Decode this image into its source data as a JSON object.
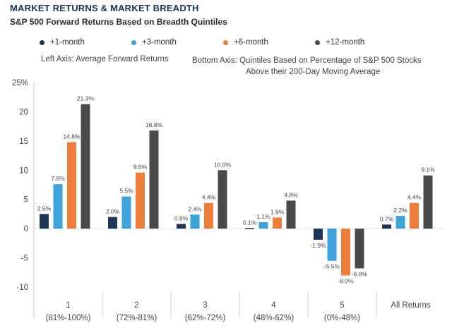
{
  "header": {
    "title": "MARKET RETURNS & MARKET BREADTH",
    "subtitle": "S&P 500 Forward Returns Based on Breadth Quintiles"
  },
  "notes": {
    "left_axis": "Left Axis: Average Forward Returns",
    "bottom_axis_line1": "Bottom Axis: Quintiles Based on Percentage of S&P 500 Stocks",
    "bottom_axis_line2": "Above their 200-Day Moving Average"
  },
  "colors": {
    "m1": "#1d3557",
    "m3": "#3ea3dc",
    "m6": "#ee7d3a",
    "m12": "#4a4a4a"
  },
  "chart_data": {
    "type": "bar",
    "title": "S&P 500 Forward Returns Based on Breadth Quintiles",
    "ylabel": "Average Forward Returns",
    "xlabel": "Quintiles Based on Percentage of S&P 500 Stocks Above their 200-Day Moving Average",
    "ylim": [
      -10,
      25
    ],
    "yticks": [
      25,
      20,
      15,
      10,
      5,
      0,
      -5,
      -10
    ],
    "ytick_labels": [
      "25%",
      "20",
      "15",
      "10",
      "5",
      "0",
      "-5",
      "-10"
    ],
    "categories": [
      {
        "label": "1",
        "sublabel": "(81%-100%)"
      },
      {
        "label": "2",
        "sublabel": "(72%-81%)"
      },
      {
        "label": "3",
        "sublabel": "(62%-72%)"
      },
      {
        "label": "4",
        "sublabel": "(48%-62%)"
      },
      {
        "label": "5",
        "sublabel": "(0%-48%)"
      },
      {
        "label": "All Returns",
        "sublabel": ""
      }
    ],
    "series": [
      {
        "name": "+1-month",
        "color_key": "m1",
        "values": [
          2.5,
          2.0,
          0.8,
          0.1,
          -1.9,
          0.7
        ],
        "labels": [
          "2.5%",
          "2.0%",
          "0.8%",
          "0.1%",
          "-1.9%",
          "0.7%"
        ]
      },
      {
        "name": "+3-month",
        "color_key": "m3",
        "values": [
          7.6,
          5.5,
          2.4,
          1.1,
          -5.5,
          2.2
        ],
        "labels": [
          "7.6%",
          "5.5%",
          "2.4%",
          "1.1%",
          "-5.5%",
          "2.2%"
        ]
      },
      {
        "name": "+6-month",
        "color_key": "m6",
        "values": [
          14.8,
          9.6,
          4.4,
          1.9,
          -8.0,
          4.4
        ],
        "labels": [
          "14.8%",
          "9.6%",
          "4.4%",
          "1.9%",
          "-8.0%",
          "4.4%"
        ]
      },
      {
        "name": "+12-month",
        "color_key": "m12",
        "values": [
          21.3,
          16.8,
          10.0,
          4.8,
          -6.8,
          9.1
        ],
        "labels": [
          "21.3%",
          "16.8%",
          "10.0%",
          "4.8%",
          "-6.8%",
          "9.1%"
        ]
      }
    ]
  }
}
